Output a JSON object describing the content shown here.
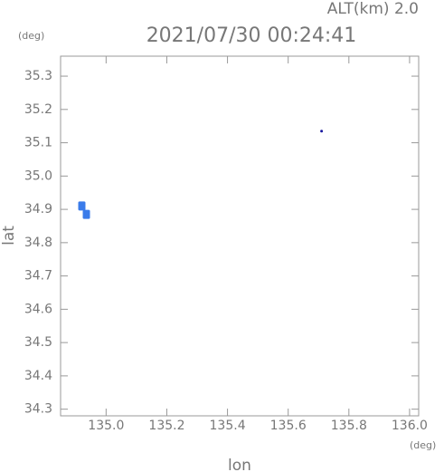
{
  "chart_data": {
    "type": "scatter",
    "title": "2021/07/30 00:24:41",
    "subtitle": "ALT(km) 2.0",
    "y_unit": "(deg)",
    "x_unit": "(deg)",
    "x_label": "lon",
    "y_label": "lat",
    "series": [
      {
        "color": "#3a7bea",
        "x": [
          134.92,
          134.935
        ],
        "values": [
          34.91,
          34.885
        ]
      },
      {
        "color": "#1a1aa0",
        "x": [
          135.71
        ],
        "values": [
          35.135
        ]
      }
    ],
    "xlim": [
      134.85,
      136.03
    ],
    "ylim": [
      34.28,
      35.36
    ],
    "xticks": [
      {
        "value": 135.0,
        "label": "135.0"
      },
      135.2,
      135.4,
      135.6,
      135.8,
      {
        "value": 136.0,
        "label": "136.0"
      }
    ],
    "yticks": [
      35.3,
      35.2,
      35.1,
      {
        "value": 35.0,
        "label": "35.0"
      },
      34.9,
      34.8,
      34.7,
      34.6,
      34.5,
      34.4,
      34.3
    ]
  }
}
